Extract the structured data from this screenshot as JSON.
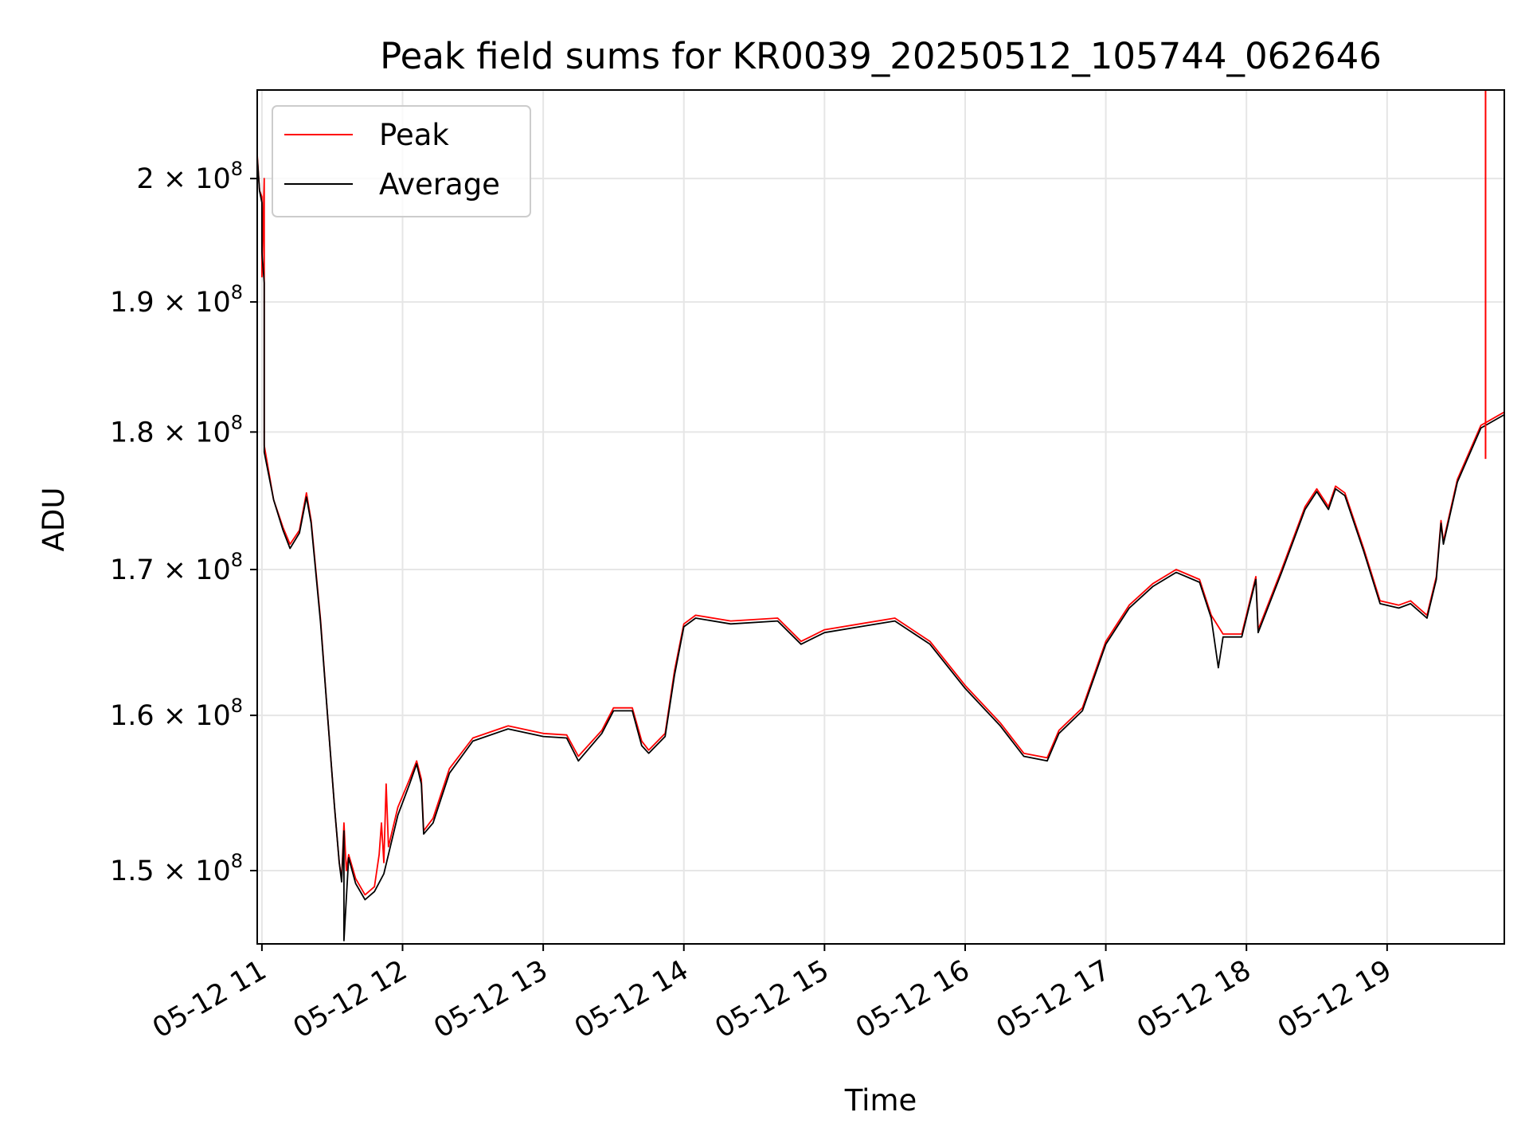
{
  "chart_data": {
    "type": "line",
    "title": "Peak field sums for KR0039_20250512_105744_062646",
    "xlabel": "Time",
    "ylabel": "ADU",
    "x_range": [
      "2025-05-12 10:58",
      "2025-05-12 19:50"
    ],
    "ylim": [
      145500000,
      207500000
    ],
    "grid": true,
    "legend_position": "upper left",
    "x_ticks": [
      {
        "value": "2025-05-12 11:00",
        "label": "05-12 11"
      },
      {
        "value": "2025-05-12 12:00",
        "label": "05-12 12"
      },
      {
        "value": "2025-05-12 13:00",
        "label": "05-12 13"
      },
      {
        "value": "2025-05-12 14:00",
        "label": "05-12 14"
      },
      {
        "value": "2025-05-12 15:00",
        "label": "05-12 15"
      },
      {
        "value": "2025-05-12 16:00",
        "label": "05-12 16"
      },
      {
        "value": "2025-05-12 17:00",
        "label": "05-12 17"
      },
      {
        "value": "2025-05-12 18:00",
        "label": "05-12 18"
      },
      {
        "value": "2025-05-12 19:00",
        "label": "05-12 19"
      }
    ],
    "y_ticks": [
      {
        "value": 150000000,
        "mantissa": "1.5",
        "exponent": "8"
      },
      {
        "value": 160000000,
        "mantissa": "1.6",
        "exponent": "8"
      },
      {
        "value": 170000000,
        "mantissa": "1.7",
        "exponent": "8"
      },
      {
        "value": 180000000,
        "mantissa": "1.8",
        "exponent": "8"
      },
      {
        "value": 190000000,
        "mantissa": "1.9",
        "exponent": "8"
      },
      {
        "value": 200000000,
        "mantissa": "2",
        "exponent": "8"
      }
    ],
    "series": [
      {
        "name": "Peak",
        "color": "#ff0000",
        "points": [
          [
            "2025-05-12 10:58",
            202000000
          ],
          [
            "2025-05-12 10:59",
            199000000
          ],
          [
            "2025-05-12 11:00",
            198500000
          ],
          [
            "2025-05-12 11:00",
            192000000
          ],
          [
            "2025-05-12 11:01",
            200000000
          ],
          [
            "2025-05-12 11:01",
            179000000
          ],
          [
            "2025-05-12 11:05",
            175000000
          ],
          [
            "2025-05-12 11:09",
            173000000
          ],
          [
            "2025-05-12 11:12",
            171800000
          ],
          [
            "2025-05-12 11:16",
            172800000
          ],
          [
            "2025-05-12 11:19",
            175500000
          ],
          [
            "2025-05-12 11:21",
            173500000
          ],
          [
            "2025-05-12 11:25",
            166500000
          ],
          [
            "2025-05-12 11:28",
            160000000
          ],
          [
            "2025-05-12 11:31",
            154000000
          ],
          [
            "2025-05-12 11:33",
            150500000
          ],
          [
            "2025-05-12 11:34",
            149500000
          ],
          [
            "2025-05-12 11:35",
            153000000
          ],
          [
            "2025-05-12 11:36",
            150000000
          ],
          [
            "2025-05-12 11:37",
            151000000
          ],
          [
            "2025-05-12 11:40",
            149500000
          ],
          [
            "2025-05-12 11:44",
            148500000
          ],
          [
            "2025-05-12 11:48",
            149000000
          ],
          [
            "2025-05-12 11:50",
            151000000
          ],
          [
            "2025-05-12 11:51",
            153000000
          ],
          [
            "2025-05-12 11:52",
            150500000
          ],
          [
            "2025-05-12 11:53",
            155500000
          ],
          [
            "2025-05-12 11:54",
            151500000
          ],
          [
            "2025-05-12 11:58",
            154000000
          ],
          [
            "2025-05-12 12:03",
            155800000
          ],
          [
            "2025-05-12 12:06",
            157000000
          ],
          [
            "2025-05-12 12:08",
            155800000
          ],
          [
            "2025-05-12 12:09",
            152500000
          ],
          [
            "2025-05-12 12:13",
            153300000
          ],
          [
            "2025-05-12 12:20",
            156500000
          ],
          [
            "2025-05-12 12:30",
            158500000
          ],
          [
            "2025-05-12 12:45",
            159300000
          ],
          [
            "2025-05-12 13:00",
            158800000
          ],
          [
            "2025-05-12 13:10",
            158700000
          ],
          [
            "2025-05-12 13:15",
            157300000
          ],
          [
            "2025-05-12 13:25",
            159000000
          ],
          [
            "2025-05-12 13:30",
            160500000
          ],
          [
            "2025-05-12 13:38",
            160500000
          ],
          [
            "2025-05-12 13:42",
            158300000
          ],
          [
            "2025-05-12 13:45",
            157700000
          ],
          [
            "2025-05-12 13:52",
            158800000
          ],
          [
            "2025-05-12 13:56",
            163000000
          ],
          [
            "2025-05-12 14:00",
            166200000
          ],
          [
            "2025-05-12 14:05",
            166800000
          ],
          [
            "2025-05-12 14:20",
            166400000
          ],
          [
            "2025-05-12 14:40",
            166600000
          ],
          [
            "2025-05-12 14:50",
            165000000
          ],
          [
            "2025-05-12 15:00",
            165800000
          ],
          [
            "2025-05-12 15:15",
            166200000
          ],
          [
            "2025-05-12 15:30",
            166600000
          ],
          [
            "2025-05-12 15:45",
            165000000
          ],
          [
            "2025-05-12 16:00",
            162000000
          ],
          [
            "2025-05-12 16:15",
            159500000
          ],
          [
            "2025-05-12 16:25",
            157500000
          ],
          [
            "2025-05-12 16:35",
            157200000
          ],
          [
            "2025-05-12 16:40",
            159000000
          ],
          [
            "2025-05-12 16:50",
            160500000
          ],
          [
            "2025-05-12 17:00",
            165000000
          ],
          [
            "2025-05-12 17:10",
            167500000
          ],
          [
            "2025-05-12 17:20",
            169000000
          ],
          [
            "2025-05-12 17:30",
            170000000
          ],
          [
            "2025-05-12 17:40",
            169300000
          ],
          [
            "2025-05-12 17:45",
            166800000
          ],
          [
            "2025-05-12 17:50",
            165500000
          ],
          [
            "2025-05-12 17:58",
            165500000
          ],
          [
            "2025-05-12 18:04",
            169500000
          ],
          [
            "2025-05-12 18:05",
            165800000
          ],
          [
            "2025-05-12 18:15",
            170000000
          ],
          [
            "2025-05-12 18:25",
            174500000
          ],
          [
            "2025-05-12 18:30",
            175800000
          ],
          [
            "2025-05-12 18:35",
            174500000
          ],
          [
            "2025-05-12 18:38",
            176000000
          ],
          [
            "2025-05-12 18:42",
            175500000
          ],
          [
            "2025-05-12 18:50",
            171500000
          ],
          [
            "2025-05-12 18:57",
            167800000
          ],
          [
            "2025-05-12 19:05",
            167500000
          ],
          [
            "2025-05-12 19:10",
            167800000
          ],
          [
            "2025-05-12 19:17",
            166800000
          ],
          [
            "2025-05-12 19:21",
            169500000
          ],
          [
            "2025-05-12 19:23",
            173500000
          ],
          [
            "2025-05-12 19:24",
            172000000
          ],
          [
            "2025-05-12 19:30",
            176500000
          ],
          [
            "2025-05-12 19:40",
            180500000
          ],
          [
            "2025-05-12 19:50",
            181500000
          ]
        ]
      },
      {
        "name": "Average",
        "color": "#000000",
        "points": [
          [
            "2025-05-12 10:58",
            201800000
          ],
          [
            "2025-05-12 10:59",
            199000000
          ],
          [
            "2025-05-12 11:00",
            198000000
          ],
          [
            "2025-05-12 11:00",
            194000000
          ],
          [
            "2025-05-12 11:01",
            191500000
          ],
          [
            "2025-05-12 11:01",
            178500000
          ],
          [
            "2025-05-12 11:05",
            175000000
          ],
          [
            "2025-05-12 11:09",
            172800000
          ],
          [
            "2025-05-12 11:12",
            171500000
          ],
          [
            "2025-05-12 11:16",
            172600000
          ],
          [
            "2025-05-12 11:19",
            175200000
          ],
          [
            "2025-05-12 11:21",
            173300000
          ],
          [
            "2025-05-12 11:25",
            166300000
          ],
          [
            "2025-05-12 11:28",
            160000000
          ],
          [
            "2025-05-12 11:31",
            154000000
          ],
          [
            "2025-05-12 11:33",
            150500000
          ],
          [
            "2025-05-12 11:34",
            149300000
          ],
          [
            "2025-05-12 11:35",
            152500000
          ],
          [
            "2025-05-12 11:35",
            145700000
          ],
          [
            "2025-05-12 11:37",
            150800000
          ],
          [
            "2025-05-12 11:40",
            149200000
          ],
          [
            "2025-05-12 11:44",
            148200000
          ],
          [
            "2025-05-12 11:48",
            148700000
          ],
          [
            "2025-05-12 11:52",
            149800000
          ],
          [
            "2025-05-12 11:58",
            153500000
          ],
          [
            "2025-05-12 12:03",
            155500000
          ],
          [
            "2025-05-12 12:06",
            156800000
          ],
          [
            "2025-05-12 12:08",
            155500000
          ],
          [
            "2025-05-12 12:09",
            152300000
          ],
          [
            "2025-05-12 12:13",
            153000000
          ],
          [
            "2025-05-12 12:20",
            156200000
          ],
          [
            "2025-05-12 12:30",
            158300000
          ],
          [
            "2025-05-12 12:45",
            159100000
          ],
          [
            "2025-05-12 13:00",
            158600000
          ],
          [
            "2025-05-12 13:10",
            158500000
          ],
          [
            "2025-05-12 13:15",
            157000000
          ],
          [
            "2025-05-12 13:25",
            158800000
          ],
          [
            "2025-05-12 13:30",
            160300000
          ],
          [
            "2025-05-12 13:38",
            160300000
          ],
          [
            "2025-05-12 13:42",
            158000000
          ],
          [
            "2025-05-12 13:45",
            157500000
          ],
          [
            "2025-05-12 13:52",
            158600000
          ],
          [
            "2025-05-12 13:56",
            162700000
          ],
          [
            "2025-05-12 14:00",
            166000000
          ],
          [
            "2025-05-12 14:05",
            166600000
          ],
          [
            "2025-05-12 14:20",
            166200000
          ],
          [
            "2025-05-12 14:40",
            166400000
          ],
          [
            "2025-05-12 14:50",
            164800000
          ],
          [
            "2025-05-12 15:00",
            165600000
          ],
          [
            "2025-05-12 15:15",
            166000000
          ],
          [
            "2025-05-12 15:30",
            166400000
          ],
          [
            "2025-05-12 15:45",
            164800000
          ],
          [
            "2025-05-12 16:00",
            161800000
          ],
          [
            "2025-05-12 16:15",
            159300000
          ],
          [
            "2025-05-12 16:25",
            157300000
          ],
          [
            "2025-05-12 16:35",
            157000000
          ],
          [
            "2025-05-12 16:40",
            158800000
          ],
          [
            "2025-05-12 16:50",
            160300000
          ],
          [
            "2025-05-12 17:00",
            164800000
          ],
          [
            "2025-05-12 17:10",
            167300000
          ],
          [
            "2025-05-12 17:20",
            168800000
          ],
          [
            "2025-05-12 17:30",
            169800000
          ],
          [
            "2025-05-12 17:40",
            169100000
          ],
          [
            "2025-05-12 17:45",
            166600000
          ],
          [
            "2025-05-12 17:48",
            163200000
          ],
          [
            "2025-05-12 17:50",
            165300000
          ],
          [
            "2025-05-12 17:58",
            165300000
          ],
          [
            "2025-05-12 18:04",
            169300000
          ],
          [
            "2025-05-12 18:05",
            165600000
          ],
          [
            "2025-05-12 18:15",
            169800000
          ],
          [
            "2025-05-12 18:25",
            174300000
          ],
          [
            "2025-05-12 18:30",
            175600000
          ],
          [
            "2025-05-12 18:35",
            174300000
          ],
          [
            "2025-05-12 18:38",
            175800000
          ],
          [
            "2025-05-12 18:42",
            175300000
          ],
          [
            "2025-05-12 18:50",
            171300000
          ],
          [
            "2025-05-12 18:57",
            167600000
          ],
          [
            "2025-05-12 19:05",
            167300000
          ],
          [
            "2025-05-12 19:10",
            167600000
          ],
          [
            "2025-05-12 19:17",
            166600000
          ],
          [
            "2025-05-12 19:21",
            169300000
          ],
          [
            "2025-05-12 19:23",
            173300000
          ],
          [
            "2025-05-12 19:24",
            171800000
          ],
          [
            "2025-05-12 19:30",
            176300000
          ],
          [
            "2025-05-12 19:40",
            180300000
          ],
          [
            "2025-05-12 19:50",
            181300000
          ]
        ]
      }
    ]
  }
}
